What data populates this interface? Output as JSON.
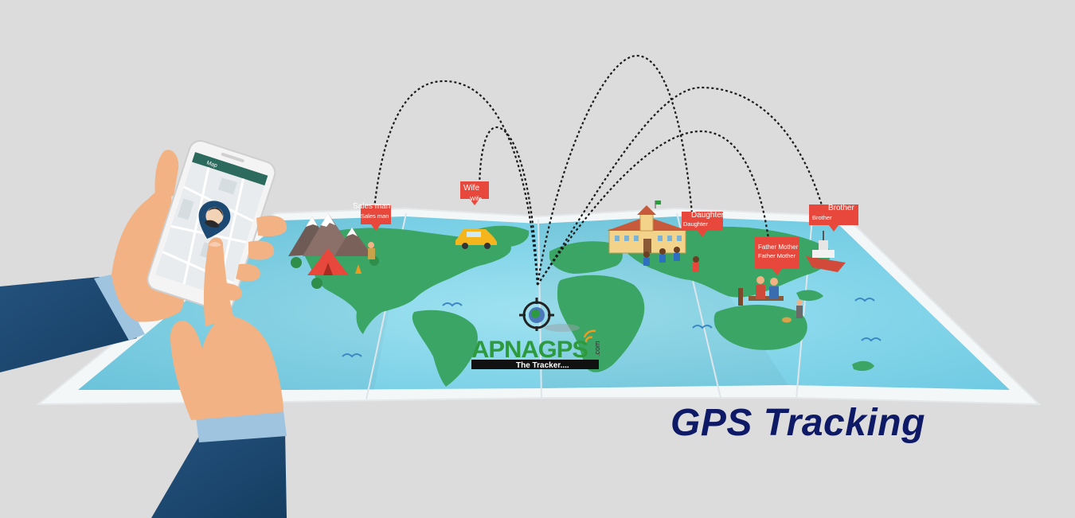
{
  "hero": {
    "title": "GPS Tracking"
  },
  "brand": {
    "name": "APNAGPS",
    "domain": ".com",
    "tagline": "The Tracker...."
  },
  "phone": {
    "app_bar_title": "Map"
  },
  "markers": [
    {
      "label": "Sales man",
      "sub": "Sales man",
      "icon": "camping-tent-icon"
    },
    {
      "label": "Wife",
      "sub": "Wife",
      "icon": "car-icon"
    },
    {
      "label": "Daughter",
      "sub": "Daughter",
      "icon": "school-icon"
    },
    {
      "label": "Father Mother",
      "sub": "Father Mother",
      "icon": "family-park-icon"
    },
    {
      "label": "Brother",
      "sub": "Brother",
      "icon": "ship-icon"
    }
  ],
  "colors": {
    "background": "#dcdcdc",
    "ocean": "#7fd3ea",
    "land": "#3aa564",
    "marker": "#e8483b",
    "title": "#0f1a66",
    "brand_green": "#2e9a3e",
    "brand_orange": "#f39a1e",
    "sleeve": "#1d4a73",
    "skin": "#f2b283"
  }
}
